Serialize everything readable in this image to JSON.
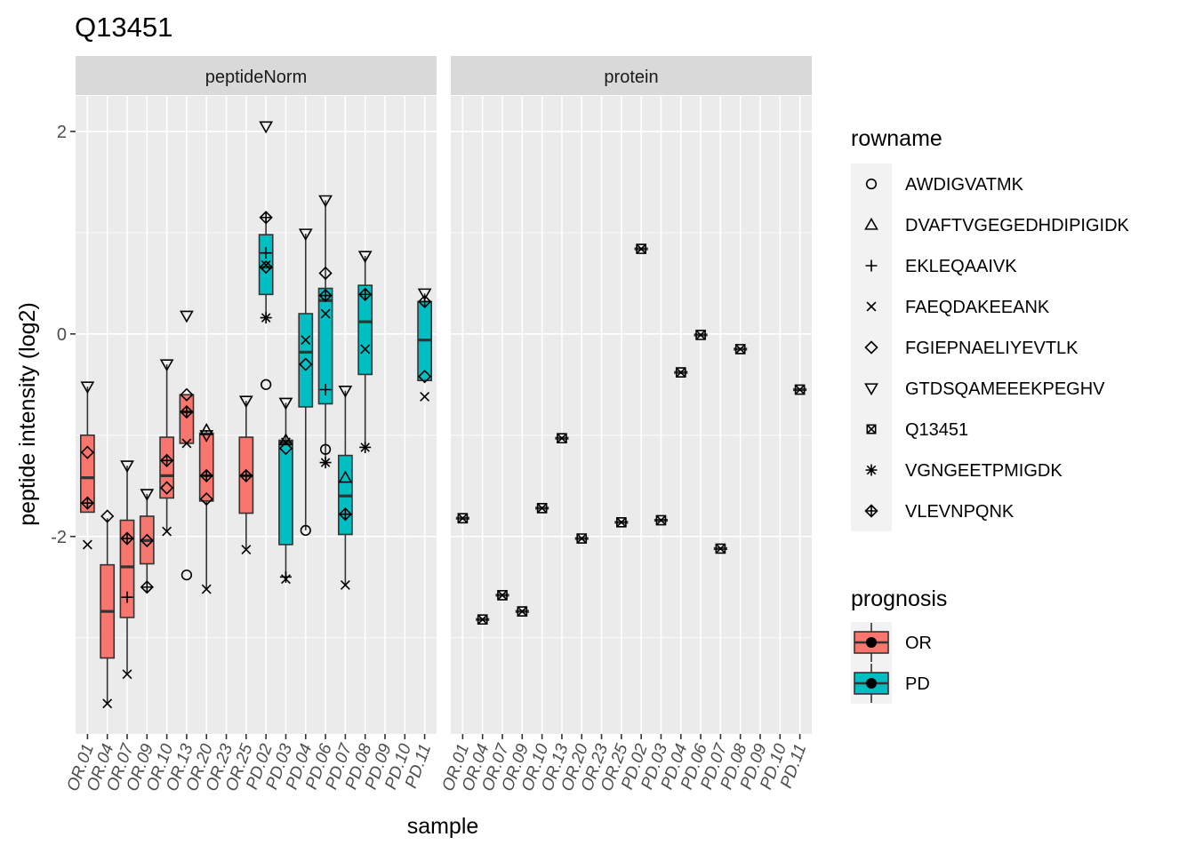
{
  "chart_data": {
    "type": "boxplot",
    "title": "Q13451",
    "xlabel": "sample",
    "ylabel": "peptide intensity (log2)",
    "y_ticks": [
      -2,
      0,
      2
    ],
    "ylim": [
      -3.95,
      2.35
    ],
    "grid": true,
    "legend_position": "right",
    "samples": [
      "OR.01",
      "OR.04",
      "OR.07",
      "OR.09",
      "OR.10",
      "OR.13",
      "OR.20",
      "OR.23",
      "OR.25",
      "PD.02",
      "PD.03",
      "PD.04",
      "PD.06",
      "PD.07",
      "PD.08",
      "PD.09",
      "PD.10",
      "PD.11"
    ],
    "rowname_legend": {
      "title": "rowname",
      "items": [
        {
          "label": "AWDIGVATMK",
          "shape": "circle"
        },
        {
          "label": "DVAFTVGEGEDHDIPIGIDK",
          "shape": "triangle"
        },
        {
          "label": "EKLEQAAIVK",
          "shape": "plus"
        },
        {
          "label": "FAEQDAKEEANK",
          "shape": "cross"
        },
        {
          "label": "FGIEPNAELIYEVTLK",
          "shape": "diamond"
        },
        {
          "label": "GTDSQAMEEEKPEGHV",
          "shape": "triangle-down"
        },
        {
          "label": "Q13451",
          "shape": "square-cross"
        },
        {
          "label": "VGNGEETPMIGDK",
          "shape": "asterisk"
        },
        {
          "label": "VLEVNPQNK",
          "shape": "diamond-plus"
        }
      ]
    },
    "prognosis_legend": {
      "title": "prognosis",
      "items": [
        {
          "label": "OR",
          "color": "#F8766D"
        },
        {
          "label": "PD",
          "color": "#00BFC4"
        }
      ]
    },
    "panels": [
      {
        "strip": "peptideNorm",
        "boxes": [
          {
            "sample": "OR.01",
            "group": "OR",
            "q1": -1.76,
            "median": -1.42,
            "q3": -1.0,
            "whisker_low": -1.76,
            "whisker_high": -0.52
          },
          {
            "sample": "OR.04",
            "group": "OR",
            "q1": -3.2,
            "median": -2.74,
            "q3": -2.28,
            "whisker_low": -3.65,
            "whisker_high": -1.82
          },
          {
            "sample": "OR.07",
            "group": "OR",
            "q1": -2.8,
            "median": -2.3,
            "q3": -1.84,
            "whisker_low": -3.36,
            "whisker_high": -1.3
          },
          {
            "sample": "OR.09",
            "group": "OR",
            "q1": -2.27,
            "median": -2.04,
            "q3": -1.8,
            "whisker_low": -2.5,
            "whisker_high": -1.58
          },
          {
            "sample": "OR.10",
            "group": "OR",
            "q1": -1.62,
            "median": -1.4,
            "q3": -1.02,
            "whisker_low": -1.95,
            "whisker_high": -0.3
          },
          {
            "sample": "OR.13",
            "group": "OR",
            "q1": -1.08,
            "median": -0.77,
            "q3": -0.6,
            "whisker_low": -1.08,
            "whisker_high": -0.6
          },
          {
            "sample": "OR.20",
            "group": "OR",
            "q1": -1.65,
            "median": -1.4,
            "q3": -0.98,
            "whisker_low": -2.52,
            "whisker_high": -0.95
          },
          {
            "sample": "OR.25",
            "group": "OR",
            "q1": -1.77,
            "median": -1.4,
            "q3": -1.02,
            "whisker_low": -2.13,
            "whisker_high": -0.66
          },
          {
            "sample": "PD.02",
            "group": "PD",
            "q1": 0.39,
            "median": 0.66,
            "q3": 0.98,
            "whisker_low": 0.16,
            "whisker_high": 1.15
          },
          {
            "sample": "PD.03",
            "group": "PD",
            "q1": -2.08,
            "median": -1.07,
            "q3": -1.05,
            "whisker_low": -2.4,
            "whisker_high": -0.68
          },
          {
            "sample": "PD.04",
            "group": "PD",
            "q1": -0.72,
            "median": -0.18,
            "q3": 0.2,
            "whisker_low": -1.94,
            "whisker_high": 0.99
          },
          {
            "sample": "PD.06",
            "group": "PD",
            "q1": -0.69,
            "median": 0.33,
            "q3": 0.45,
            "whisker_low": -1.27,
            "whisker_high": 1.32
          },
          {
            "sample": "PD.07",
            "group": "PD",
            "q1": -1.98,
            "median": -1.6,
            "q3": -1.2,
            "whisker_low": -2.48,
            "whisker_high": -0.56
          },
          {
            "sample": "PD.08",
            "group": "PD",
            "q1": -0.4,
            "median": 0.12,
            "q3": 0.48,
            "whisker_low": -1.12,
            "whisker_high": 0.77
          },
          {
            "sample": "PD.11",
            "group": "PD",
            "q1": -0.46,
            "median": -0.06,
            "q3": 0.32,
            "whisker_low": -0.46,
            "whisker_high": 0.4
          }
        ],
        "points": [
          {
            "sample": "OR.01",
            "y": -0.52,
            "shape": "triangle-down"
          },
          {
            "sample": "OR.01",
            "y": -1.17,
            "shape": "diamond"
          },
          {
            "sample": "OR.01",
            "y": -1.67,
            "shape": "diamond-plus"
          },
          {
            "sample": "OR.01",
            "y": -2.08,
            "shape": "cross"
          },
          {
            "sample": "OR.04",
            "y": -1.8,
            "shape": "diamond"
          },
          {
            "sample": "OR.04",
            "y": -3.65,
            "shape": "cross"
          },
          {
            "sample": "OR.07",
            "y": -1.3,
            "shape": "triangle-down"
          },
          {
            "sample": "OR.07",
            "y": -2.02,
            "shape": "diamond-plus"
          },
          {
            "sample": "OR.07",
            "y": -2.6,
            "shape": "plus"
          },
          {
            "sample": "OR.07",
            "y": -3.36,
            "shape": "cross"
          },
          {
            "sample": "OR.09",
            "y": -1.58,
            "shape": "triangle-down"
          },
          {
            "sample": "OR.09",
            "y": -2.04,
            "shape": "diamond"
          },
          {
            "sample": "OR.09",
            "y": -2.5,
            "shape": "diamond-plus"
          },
          {
            "sample": "OR.10",
            "y": -0.3,
            "shape": "triangle-down"
          },
          {
            "sample": "OR.10",
            "y": -1.25,
            "shape": "diamond-plus"
          },
          {
            "sample": "OR.10",
            "y": -1.52,
            "shape": "diamond"
          },
          {
            "sample": "OR.10",
            "y": -1.95,
            "shape": "cross"
          },
          {
            "sample": "OR.13",
            "y": 0.18,
            "shape": "triangle-down"
          },
          {
            "sample": "OR.13",
            "y": -0.6,
            "shape": "diamond"
          },
          {
            "sample": "OR.13",
            "y": -0.77,
            "shape": "diamond-plus"
          },
          {
            "sample": "OR.13",
            "y": -1.08,
            "shape": "cross"
          },
          {
            "sample": "OR.13",
            "y": -2.38,
            "shape": "circle"
          },
          {
            "sample": "OR.20",
            "y": -0.95,
            "shape": "triangle"
          },
          {
            "sample": "OR.20",
            "y": -1.0,
            "shape": "triangle-down"
          },
          {
            "sample": "OR.20",
            "y": -1.4,
            "shape": "diamond-plus"
          },
          {
            "sample": "OR.20",
            "y": -1.63,
            "shape": "diamond"
          },
          {
            "sample": "OR.20",
            "y": -2.52,
            "shape": "cross"
          },
          {
            "sample": "OR.25",
            "y": -0.66,
            "shape": "triangle-down"
          },
          {
            "sample": "OR.25",
            "y": -1.4,
            "shape": "diamond-plus"
          },
          {
            "sample": "OR.25",
            "y": -2.13,
            "shape": "cross"
          },
          {
            "sample": "PD.02",
            "y": 2.05,
            "shape": "triangle-down"
          },
          {
            "sample": "PD.02",
            "y": 1.15,
            "shape": "diamond-plus"
          },
          {
            "sample": "PD.02",
            "y": 0.8,
            "shape": "plus"
          },
          {
            "sample": "PD.02",
            "y": 0.68,
            "shape": "cross"
          },
          {
            "sample": "PD.02",
            "y": 0.66,
            "shape": "diamond"
          },
          {
            "sample": "PD.02",
            "y": 0.16,
            "shape": "asterisk"
          },
          {
            "sample": "PD.02",
            "y": -0.5,
            "shape": "circle"
          },
          {
            "sample": "PD.03",
            "y": -0.68,
            "shape": "triangle-down"
          },
          {
            "sample": "PD.03",
            "y": -1.05,
            "shape": "triangle"
          },
          {
            "sample": "PD.03",
            "y": -1.07,
            "shape": "cross"
          },
          {
            "sample": "PD.03",
            "y": -1.13,
            "shape": "diamond"
          },
          {
            "sample": "PD.03",
            "y": -2.4,
            "shape": "plus"
          },
          {
            "sample": "PD.03",
            "y": -2.42,
            "shape": "cross"
          },
          {
            "sample": "PD.04",
            "y": 0.99,
            "shape": "triangle-down"
          },
          {
            "sample": "PD.04",
            "y": -0.06,
            "shape": "cross"
          },
          {
            "sample": "PD.04",
            "y": -0.3,
            "shape": "diamond"
          },
          {
            "sample": "PD.04",
            "y": -1.94,
            "shape": "circle"
          },
          {
            "sample": "PD.06",
            "y": 1.32,
            "shape": "triangle-down"
          },
          {
            "sample": "PD.06",
            "y": 0.6,
            "shape": "diamond"
          },
          {
            "sample": "PD.06",
            "y": 0.38,
            "shape": "diamond-plus"
          },
          {
            "sample": "PD.06",
            "y": 0.2,
            "shape": "cross"
          },
          {
            "sample": "PD.06",
            "y": -0.55,
            "shape": "plus"
          },
          {
            "sample": "PD.06",
            "y": -1.14,
            "shape": "circle"
          },
          {
            "sample": "PD.06",
            "y": -1.27,
            "shape": "asterisk"
          },
          {
            "sample": "PD.07",
            "y": -0.56,
            "shape": "triangle-down"
          },
          {
            "sample": "PD.07",
            "y": -1.42,
            "shape": "triangle"
          },
          {
            "sample": "PD.07",
            "y": -1.78,
            "shape": "diamond-plus"
          },
          {
            "sample": "PD.07",
            "y": -2.48,
            "shape": "cross"
          },
          {
            "sample": "PD.08",
            "y": 0.77,
            "shape": "triangle-down"
          },
          {
            "sample": "PD.08",
            "y": 0.39,
            "shape": "diamond-plus"
          },
          {
            "sample": "PD.08",
            "y": -0.15,
            "shape": "cross"
          },
          {
            "sample": "PD.08",
            "y": -1.12,
            "shape": "asterisk"
          },
          {
            "sample": "PD.11",
            "y": 0.4,
            "shape": "triangle-down"
          },
          {
            "sample": "PD.11",
            "y": 0.32,
            "shape": "diamond-plus"
          },
          {
            "sample": "PD.11",
            "y": -0.42,
            "shape": "diamond"
          },
          {
            "sample": "PD.11",
            "y": -0.62,
            "shape": "cross"
          }
        ]
      },
      {
        "strip": "protein",
        "boxes": [
          {
            "sample": "OR.01",
            "group": "OR",
            "median": -1.82
          },
          {
            "sample": "OR.04",
            "group": "OR",
            "median": -2.82
          },
          {
            "sample": "OR.07",
            "group": "OR",
            "median": -2.58
          },
          {
            "sample": "OR.09",
            "group": "OR",
            "median": -2.74
          },
          {
            "sample": "OR.10",
            "group": "OR",
            "median": -1.72
          },
          {
            "sample": "OR.13",
            "group": "OR",
            "median": -1.03
          },
          {
            "sample": "OR.20",
            "group": "OR",
            "median": -2.02
          },
          {
            "sample": "OR.25",
            "group": "OR",
            "median": -1.86
          },
          {
            "sample": "PD.02",
            "group": "PD",
            "median": 0.84
          },
          {
            "sample": "PD.03",
            "group": "PD",
            "median": -1.84
          },
          {
            "sample": "PD.04",
            "group": "PD",
            "median": -0.38
          },
          {
            "sample": "PD.06",
            "group": "PD",
            "median": -0.01
          },
          {
            "sample": "PD.07",
            "group": "PD",
            "median": -2.12
          },
          {
            "sample": "PD.08",
            "group": "PD",
            "median": -0.15
          },
          {
            "sample": "PD.11",
            "group": "PD",
            "median": -0.55
          }
        ]
      }
    ]
  }
}
